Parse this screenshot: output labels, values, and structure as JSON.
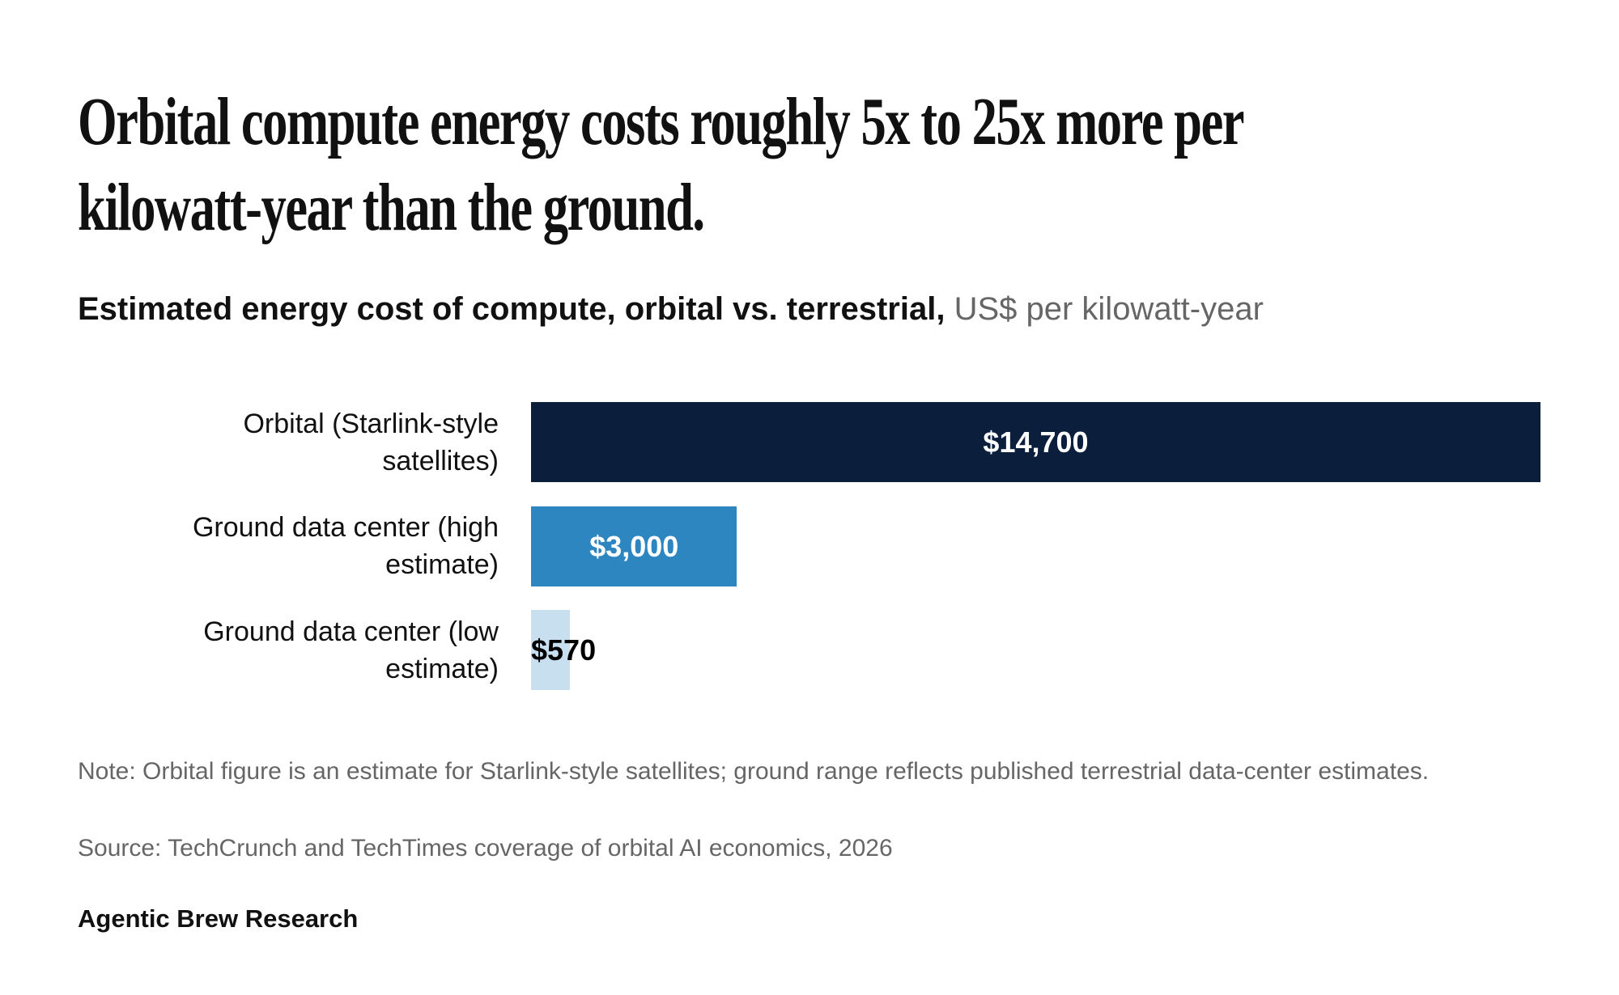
{
  "chart_data": {
    "type": "bar",
    "orientation": "horizontal",
    "title": "Orbital compute energy costs roughly 5x to 25x more per kilowatt-year than the ground.",
    "subtitle": "Estimated energy cost of compute, orbital vs. terrestrial,",
    "unit": "US$ per kilowatt-year",
    "categories": [
      "Orbital (Starlink-style satellites)",
      "Ground data center (high estimate)",
      "Ground data center (low estimate)"
    ],
    "values": [
      14700,
      3000,
      570
    ],
    "value_labels": [
      "$14,700",
      "$3,000",
      "$570"
    ],
    "colors": [
      "#0b1f3d",
      "#2e86c1",
      "#c8dff0"
    ],
    "label_colors": [
      "#ffffff",
      "#ffffff",
      "#000000"
    ],
    "note": "Note: Orbital figure is an estimate for Starlink-style satellites; ground range reflects published terrestrial data-center estimates.",
    "source": "Source: TechCrunch and TechTimes coverage of orbital AI economics, 2026",
    "footer": "Agentic Brew Research"
  }
}
